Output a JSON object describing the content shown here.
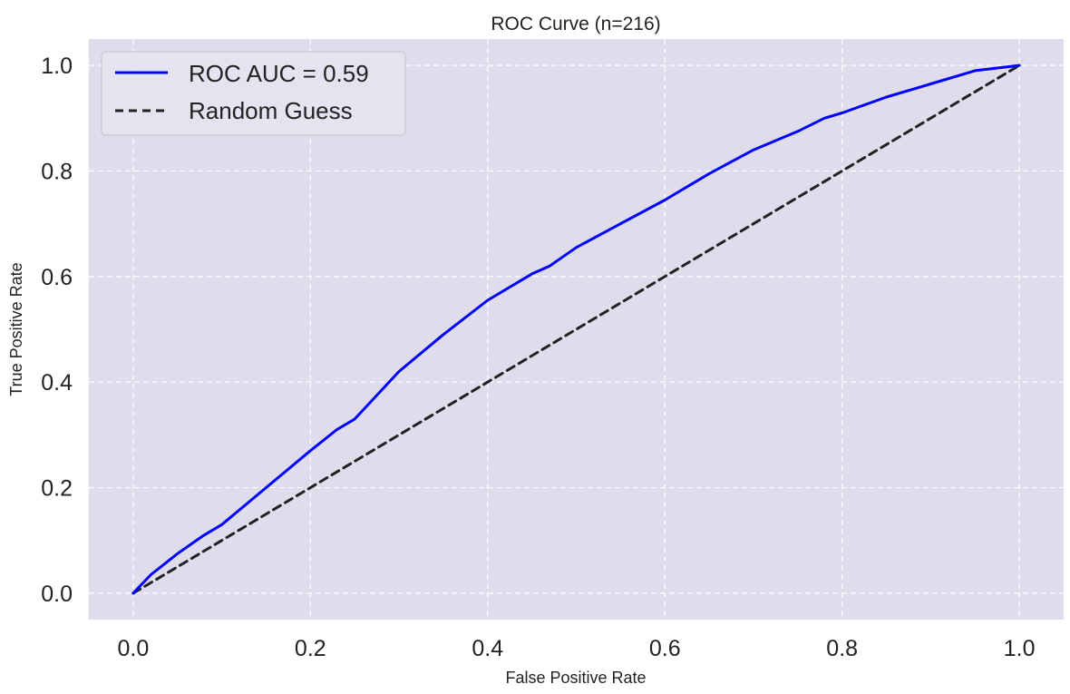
{
  "chart_data": {
    "type": "line",
    "title": "ROC Curve (n=216)",
    "xlabel": "False Positive Rate",
    "ylabel": "True Positive Rate",
    "xlim": [
      -0.05,
      1.05
    ],
    "ylim": [
      -0.05,
      1.05
    ],
    "xticks": [
      0.0,
      0.2,
      0.4,
      0.6,
      0.8,
      1.0
    ],
    "xtick_labels": [
      "0.0",
      "0.2",
      "0.4",
      "0.6",
      "0.8",
      "1.0"
    ],
    "yticks": [
      0.0,
      0.2,
      0.4,
      0.6,
      0.8,
      1.0
    ],
    "ytick_labels": [
      "0.0",
      "0.2",
      "0.4",
      "0.6",
      "0.8",
      "1.0"
    ],
    "grid": true,
    "legend_position": "upper left",
    "background_color": "#dfdcec",
    "series": [
      {
        "name": "ROC AUC = 0.59",
        "color": "#0000ff",
        "style": "solid",
        "x": [
          0.0,
          0.02,
          0.05,
          0.08,
          0.1,
          0.15,
          0.2,
          0.23,
          0.25,
          0.3,
          0.35,
          0.4,
          0.45,
          0.47,
          0.5,
          0.55,
          0.6,
          0.65,
          0.7,
          0.75,
          0.78,
          0.8,
          0.85,
          0.9,
          0.95,
          1.0
        ],
        "y": [
          0.0,
          0.035,
          0.075,
          0.11,
          0.13,
          0.2,
          0.27,
          0.31,
          0.33,
          0.42,
          0.49,
          0.555,
          0.605,
          0.62,
          0.655,
          0.7,
          0.745,
          0.795,
          0.84,
          0.875,
          0.9,
          0.91,
          0.94,
          0.965,
          0.99,
          1.0
        ]
      },
      {
        "name": "Random Guess",
        "color": "#222222",
        "style": "dashed",
        "x": [
          0.0,
          1.0
        ],
        "y": [
          0.0,
          1.0
        ]
      }
    ]
  }
}
